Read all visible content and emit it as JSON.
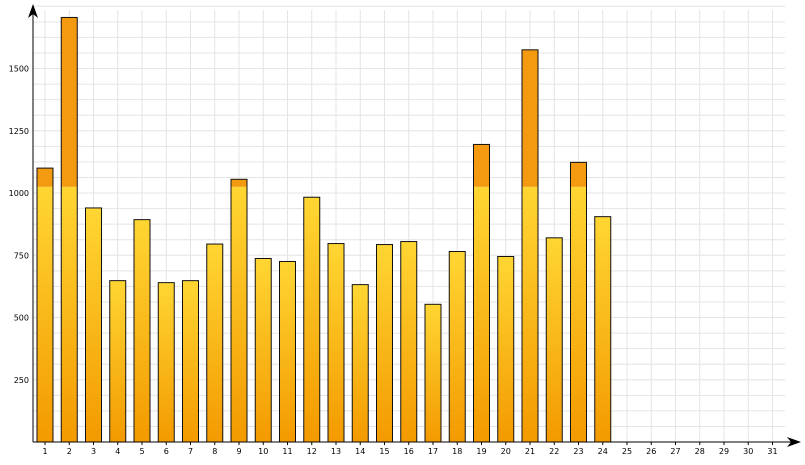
{
  "chart_data": {
    "type": "bar",
    "title": "",
    "xlabel": "",
    "ylabel": "",
    "ylim": [
      0,
      1760
    ],
    "y_ticks": [
      "250",
      "500",
      "750",
      "1000",
      "1250",
      "1500"
    ],
    "threshold": 1025,
    "categories": [
      "1",
      "2",
      "3",
      "4",
      "5",
      "6",
      "7",
      "8",
      "9",
      "10",
      "11",
      "12",
      "13",
      "14",
      "15",
      "16",
      "17",
      "18",
      "19",
      "20",
      "21",
      "22",
      "23",
      "24",
      "25",
      "26",
      "27",
      "28",
      "29",
      "30",
      "31"
    ],
    "values": [
      1100,
      1705,
      940,
      648,
      893,
      640,
      648,
      795,
      1055,
      737,
      725,
      983,
      797,
      632,
      793,
      805,
      553,
      765,
      1195,
      745,
      1575,
      820,
      1123,
      905,
      null,
      null,
      null,
      null,
      null,
      null,
      null
    ],
    "grid": true,
    "colors": {
      "bar_top": "#ffd633",
      "bar_bottom": "#f39a00",
      "over_threshold": "#f39a10",
      "bar_stroke": "#111111",
      "grid": "#e4e4e4",
      "axis": "#000000"
    }
  }
}
